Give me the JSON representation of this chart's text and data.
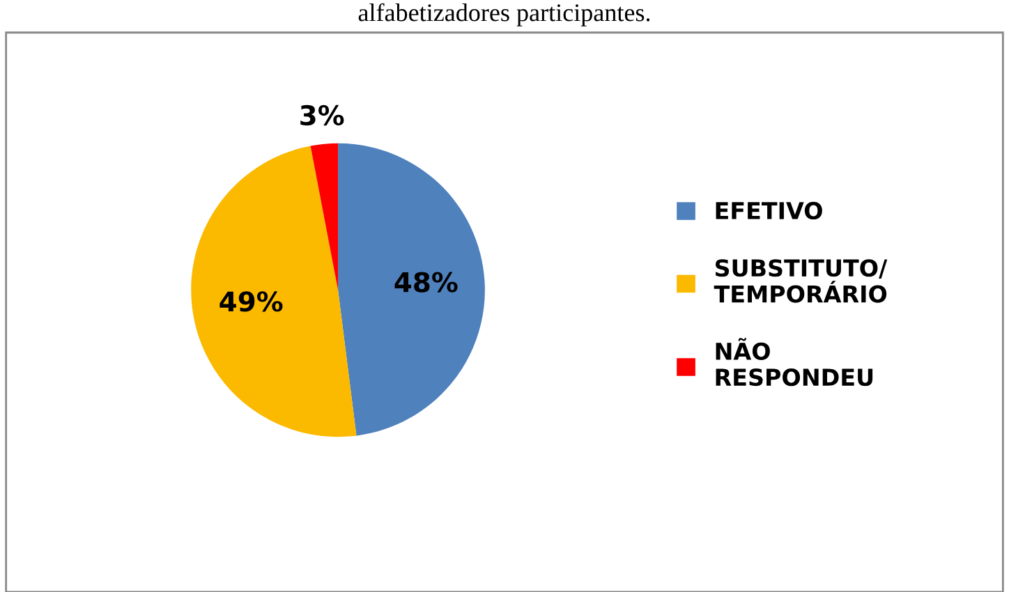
{
  "chart_data": {
    "type": "pie",
    "title": "alfabetizadores participantes.",
    "categories": [
      "EFETIVO",
      "SUBSTITUTO/\nTEMPORÁRIO",
      "NÃO\nRESPONDEU"
    ],
    "values": [
      48,
      49,
      3
    ],
    "colors": [
      "#4f81bd",
      "#fbb900",
      "#ff0000"
    ],
    "value_labels": [
      "48%",
      "49%",
      "3%"
    ],
    "legend": "right"
  }
}
